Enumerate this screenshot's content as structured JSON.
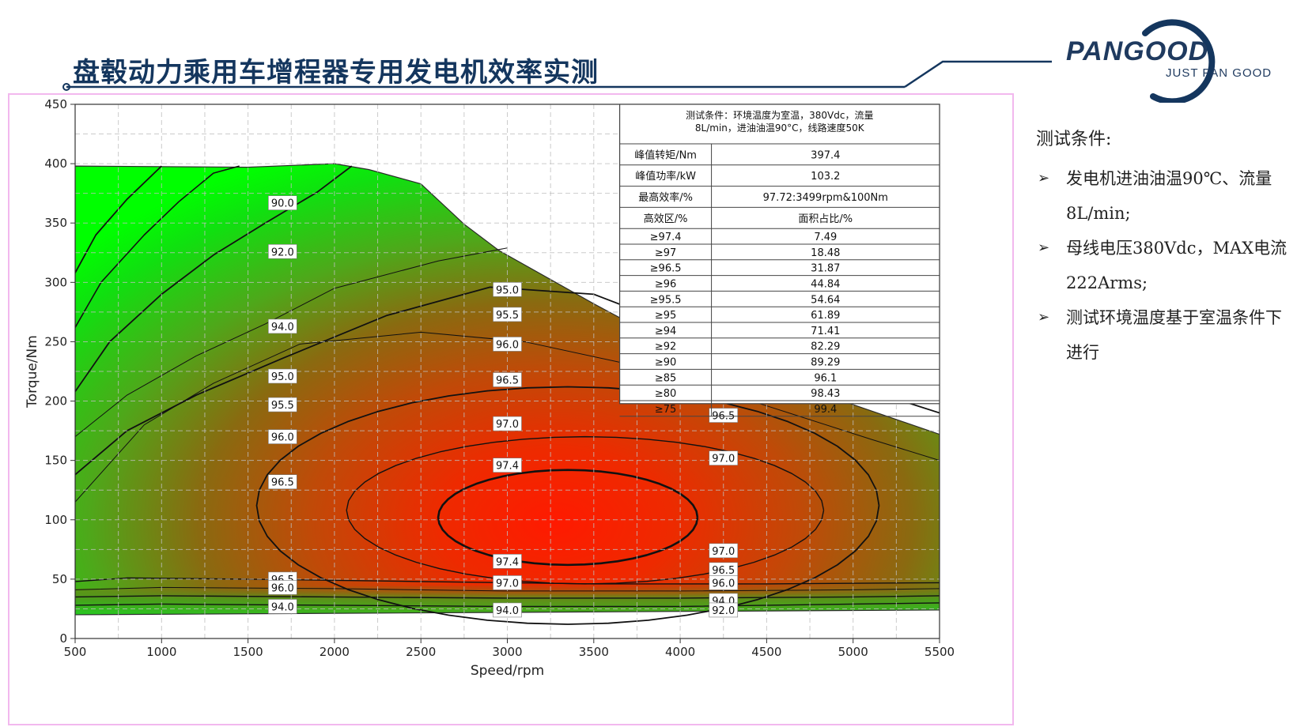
{
  "slide": {
    "title": "盘毂动力乘用车增程器专用发电机效率实测",
    "logo_text": "PANGOOD",
    "logo_tagline": "JUST PAN GOOD",
    "brand_color": "#14365e"
  },
  "side_panel": {
    "heading": "测试条件:",
    "items": [
      "发电机进油油温90℃、流量8L/min;",
      "母线电压380Vdc，MAX电流222Arms;",
      "测试环境温度基于室温条件下进行"
    ]
  },
  "chart_data": {
    "type": "heatmap",
    "title": "",
    "xlabel": "Speed/rpm",
    "ylabel": "Torque/Nm",
    "xlim": [
      500,
      5500
    ],
    "ylim": [
      0,
      450
    ],
    "x_ticks": [
      "500",
      "1000",
      "1500",
      "2000",
      "2500",
      "3000",
      "3500",
      "4000",
      "4500",
      "5000",
      "5500"
    ],
    "y_ticks": [
      "0",
      "50",
      "100",
      "150",
      "200",
      "250",
      "300",
      "350",
      "400",
      "450"
    ],
    "grid": true,
    "colors": {
      "high": "#ff1a00",
      "mid": "#b05a10",
      "low": "#00e000"
    },
    "max_torque_envelope": [
      {
        "speed": 500,
        "torque": 398
      },
      {
        "speed": 1500,
        "torque": 397
      },
      {
        "speed": 2000,
        "torque": 400
      },
      {
        "speed": 2200,
        "torque": 395
      },
      {
        "speed": 2500,
        "torque": 383
      },
      {
        "speed": 2750,
        "torque": 349
      },
      {
        "speed": 2950,
        "torque": 327
      },
      {
        "speed": 3500,
        "torque": 282
      },
      {
        "speed": 4000,
        "torque": 243
      },
      {
        "speed": 4500,
        "torque": 223
      },
      {
        "speed": 5000,
        "torque": 197
      },
      {
        "speed": 5500,
        "torque": 172
      }
    ],
    "contours": [
      {
        "level": "97.4",
        "label_positions": [
          [
            3000,
            146
          ],
          [
            3000,
            65
          ]
        ]
      },
      {
        "level": "97.0",
        "label_positions": [
          [
            3000,
            181
          ],
          [
            4250,
            152
          ],
          [
            4250,
            74
          ],
          [
            3000,
            47
          ]
        ]
      },
      {
        "level": "96.5",
        "label_positions": [
          [
            3000,
            218
          ],
          [
            4250,
            188
          ],
          [
            1700,
            132
          ],
          [
            1700,
            50
          ],
          [
            4250,
            58
          ]
        ]
      },
      {
        "level": "96.0",
        "label_positions": [
          [
            3000,
            248
          ],
          [
            1700,
            170
          ],
          [
            1700,
            43
          ],
          [
            4250,
            47
          ]
        ]
      },
      {
        "level": "95.5",
        "label_positions": [
          [
            3000,
            273
          ],
          [
            1700,
            197
          ]
        ]
      },
      {
        "level": "95.0",
        "label_positions": [
          [
            3000,
            294
          ],
          [
            1700,
            221
          ]
        ]
      },
      {
        "level": "94.0",
        "label_positions": [
          [
            1700,
            263
          ],
          [
            1700,
            27
          ],
          [
            3000,
            24
          ],
          [
            4250,
            32
          ]
        ]
      },
      {
        "level": "92.0",
        "label_positions": [
          [
            1700,
            326
          ],
          [
            4250,
            24
          ]
        ]
      },
      {
        "level": "90.0",
        "label_positions": [
          [
            1700,
            367
          ]
        ]
      }
    ],
    "table": {
      "condition": "测试条件：环境温度为室温，380Vdc，流量8L/min，进油油温90°C，线路速度50K",
      "rows": [
        [
          "峰值转矩/Nm",
          "397.4"
        ],
        [
          "峰值功率/kW",
          "103.2"
        ],
        [
          "最高效率/%",
          "97.72:3499rpm&100Nm"
        ],
        [
          "高效区/%",
          "面积占比/%"
        ],
        [
          "≥97.4",
          "7.49"
        ],
        [
          "≥97",
          "18.48"
        ],
        [
          "≥96.5",
          "31.87"
        ],
        [
          "≥96",
          "44.84"
        ],
        [
          "≥95.5",
          "54.64"
        ],
        [
          "≥95",
          "61.89"
        ],
        [
          "≥94",
          "71.41"
        ],
        [
          "≥92",
          "82.29"
        ],
        [
          "≥90",
          "89.29"
        ],
        [
          "≥85",
          "96.1"
        ],
        [
          "≥80",
          "98.43"
        ],
        [
          "≥75",
          "99.4"
        ]
      ]
    }
  }
}
